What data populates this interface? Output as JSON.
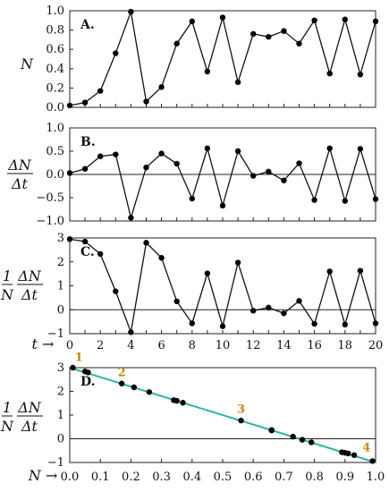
{
  "chart_data": [
    {
      "type": "line",
      "panel_label": "A.",
      "ylabel": "N",
      "ylim": [
        0,
        1.0
      ],
      "yticks": [
        "0.0",
        "0.2",
        "0.4",
        "0.6",
        "0.8",
        "1.0"
      ],
      "xlim": [
        0,
        20
      ],
      "x": [
        0,
        1,
        2,
        3,
        4,
        5,
        6,
        7,
        8,
        9,
        10,
        11,
        12,
        13,
        14,
        15,
        16,
        17,
        18,
        19,
        20
      ],
      "values": [
        0.02,
        0.05,
        0.17,
        0.56,
        0.99,
        0.06,
        0.21,
        0.66,
        0.89,
        0.37,
        0.93,
        0.26,
        0.76,
        0.73,
        0.79,
        0.66,
        0.9,
        0.35,
        0.91,
        0.34,
        0.89
      ]
    },
    {
      "type": "line",
      "panel_label": "B.",
      "ylabel": "ΔN / Δt",
      "ylim": [
        -1.0,
        1.0
      ],
      "yticks": [
        "−1.0",
        "−0.5",
        "0.0",
        "0.5",
        "1.0"
      ],
      "xlim": [
        0,
        20
      ],
      "x": [
        0,
        1,
        2,
        3,
        4,
        5,
        6,
        7,
        8,
        9,
        10,
        11,
        12,
        13,
        14,
        15,
        16,
        17,
        18,
        19,
        20
      ],
      "values": [
        0.03,
        0.12,
        0.39,
        0.43,
        -0.93,
        0.15,
        0.45,
        0.23,
        -0.52,
        0.56,
        -0.67,
        0.5,
        -0.03,
        0.06,
        -0.13,
        0.24,
        -0.55,
        0.56,
        -0.57,
        0.55,
        -0.53
      ]
    },
    {
      "type": "line",
      "panel_label": "C.",
      "ylabel": "1/N · ΔN/Δt",
      "ylim": [
        -1,
        3
      ],
      "yticks": [
        "−1",
        "0",
        "1",
        "2",
        "3"
      ],
      "xlim": [
        0,
        20
      ],
      "xlabel": "t →",
      "xticks": [
        "0",
        "2",
        "4",
        "6",
        "8",
        "10",
        "12",
        "14",
        "16",
        "18",
        "20"
      ],
      "x": [
        0,
        1,
        2,
        3,
        4,
        5,
        6,
        7,
        8,
        9,
        10,
        11,
        12,
        13,
        14,
        15,
        16,
        17,
        18,
        19,
        20
      ],
      "values": [
        2.95,
        2.85,
        2.33,
        0.77,
        -0.94,
        2.8,
        2.17,
        0.35,
        -0.57,
        1.52,
        -0.69,
        1.97,
        -0.04,
        0.09,
        -0.15,
        0.37,
        -0.59,
        1.6,
        -0.62,
        1.63,
        -0.57
      ]
    },
    {
      "type": "scatter",
      "panel_label": "D.",
      "ylabel": "1/N · ΔN/Δt",
      "xlabel": "N →",
      "xlim": [
        0,
        1.0
      ],
      "ylim": [
        -1,
        3
      ],
      "yticks": [
        "−1",
        "0",
        "1",
        "2",
        "3"
      ],
      "xticks": [
        "0.0",
        "0.1",
        "0.2",
        "0.3",
        "0.4",
        "0.5",
        "0.6",
        "0.7",
        "0.8",
        "0.9",
        "1.0"
      ],
      "points": [
        [
          0.01,
          3.0
        ],
        [
          0.05,
          2.84
        ],
        [
          0.06,
          2.8
        ],
        [
          0.17,
          2.33
        ],
        [
          0.21,
          2.17
        ],
        [
          0.26,
          1.97
        ],
        [
          0.34,
          1.63
        ],
        [
          0.35,
          1.6
        ],
        [
          0.37,
          1.52
        ],
        [
          0.56,
          0.77
        ],
        [
          0.66,
          0.37
        ],
        [
          0.66,
          0.35
        ],
        [
          0.73,
          0.09
        ],
        [
          0.76,
          -0.04
        ],
        [
          0.79,
          -0.15
        ],
        [
          0.89,
          -0.57
        ],
        [
          0.9,
          -0.59
        ],
        [
          0.91,
          -0.62
        ],
        [
          0.93,
          -0.69
        ],
        [
          0.99,
          -0.94
        ]
      ],
      "fit_line": {
        "x": [
          0,
          1.0
        ],
        "y": [
          3.0,
          -1.0
        ],
        "color": "#2bb5a5"
      },
      "annotations": [
        {
          "text": "1",
          "x": 0.03,
          "y": 3.28
        },
        {
          "text": "2",
          "x": 0.17,
          "y": 2.65
        },
        {
          "text": "3",
          "x": 0.56,
          "y": 1.1
        },
        {
          "text": "4",
          "x": 0.97,
          "y": -0.52
        }
      ],
      "annotation_color": "#c8860f"
    }
  ]
}
